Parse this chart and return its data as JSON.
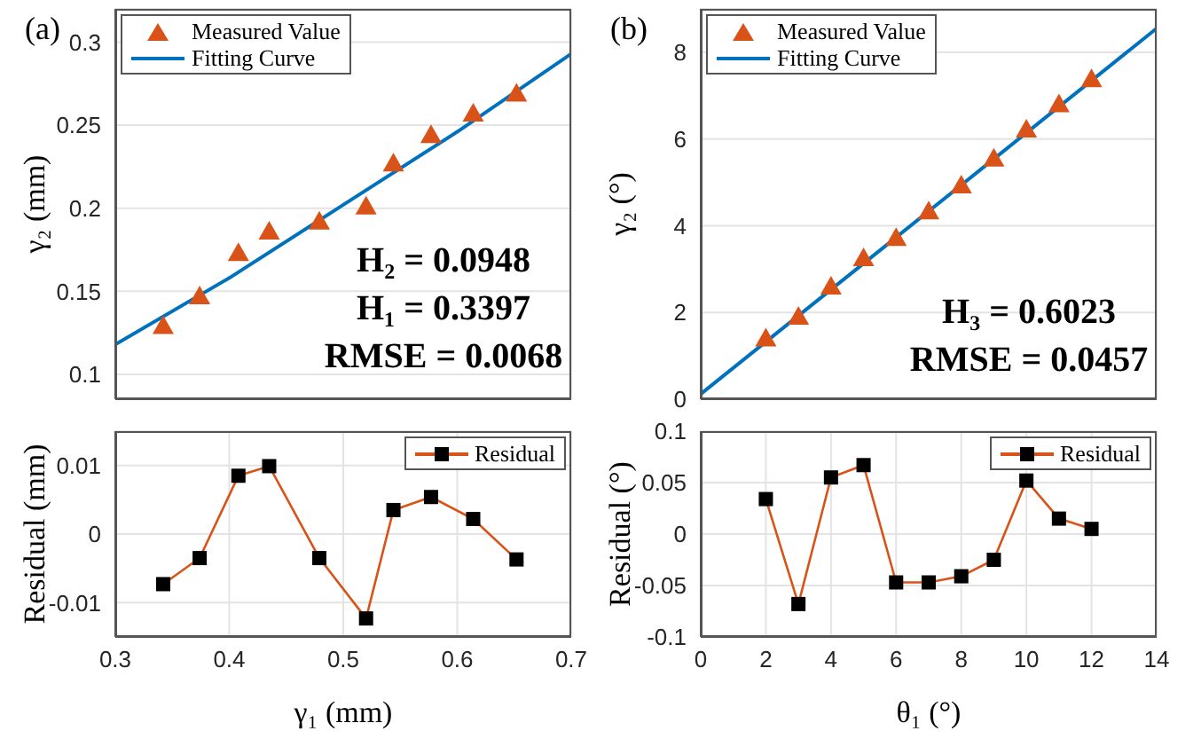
{
  "chart_data": [
    {
      "type": "scatter",
      "xlim": [
        0.3,
        0.7
      ],
      "xticks": [
        0.3,
        0.4,
        0.5,
        0.6,
        0.7
      ],
      "ylim": [
        0.085,
        0.32
      ],
      "yticks": [
        0.1,
        0.15,
        0.2,
        0.25,
        0.3
      ],
      "tick_labels": "y",
      "ylabel": "γ₂ (mm)",
      "legend": "top left",
      "grid": true,
      "annotations": [
        "(a)",
        "H₂ = 0.0948",
        "H₁ = 0.3397",
        "RMSE = 0.0068"
      ],
      "series": [
        {
          "name": "Measured Value",
          "type": "scatter",
          "marker": "triangle",
          "color": "#d95319",
          "x": [
            0.342,
            0.374,
            0.408,
            0.435,
            0.479,
            0.52,
            0.544,
            0.577,
            0.614,
            0.652
          ],
          "values": [
            0.129,
            0.147,
            0.173,
            0.186,
            0.192,
            0.201,
            0.227,
            0.244,
            0.257,
            0.269
          ]
        },
        {
          "name": "Fitting Curve",
          "type": "line",
          "marker": "none",
          "color": "#0072bd",
          "x": [
            0.3,
            0.4,
            0.5,
            0.6,
            0.7
          ],
          "values": [
            0.118,
            0.158,
            0.202,
            0.246,
            0.293
          ]
        }
      ]
    },
    {
      "type": "line",
      "xlim": [
        0.3,
        0.7
      ],
      "xticks": [
        0.3,
        0.4,
        0.5,
        0.6,
        0.7
      ],
      "ylim": [
        -0.015,
        0.015
      ],
      "yticks": [
        -0.01,
        0,
        0.01
      ],
      "xlabel": "γ₁ (mm)",
      "ylabel": "Residual (mm)",
      "legend": "top right",
      "grid": true,
      "marker": "square",
      "series": [
        {
          "name": "Residual",
          "color": "#d95319",
          "x": [
            0.342,
            0.374,
            0.408,
            0.435,
            0.479,
            0.52,
            0.544,
            0.577,
            0.614,
            0.652
          ],
          "values": [
            -0.0073,
            -0.0035,
            0.0085,
            0.0099,
            -0.0035,
            -0.0123,
            0.0035,
            0.0054,
            0.0022,
            -0.0037
          ]
        }
      ]
    },
    {
      "type": "scatter",
      "xlim": [
        0,
        14
      ],
      "xticks": [
        0,
        2,
        4,
        6,
        8,
        10,
        12,
        14
      ],
      "ylim": [
        0,
        9
      ],
      "yticks": [
        0,
        2,
        4,
        6,
        8
      ],
      "tick_labels": "y",
      "ylabel": "γ₂ (°)",
      "legend": "top left",
      "grid": true,
      "annotations": [
        "(b)",
        "H₃ = 0.6023",
        "RMSE = 0.0457"
      ],
      "series": [
        {
          "name": "Measured Value",
          "type": "scatter",
          "marker": "triangle",
          "color": "#d95319",
          "x": [
            2,
            3,
            4,
            5,
            6,
            7,
            8,
            9,
            10,
            11,
            12
          ],
          "values": [
            1.4,
            1.9,
            2.6,
            3.25,
            3.72,
            4.33,
            4.93,
            5.55,
            6.22,
            6.8,
            7.38
          ]
        },
        {
          "name": "Fitting Curve",
          "type": "line",
          "marker": "none",
          "color": "#0072bd",
          "x": [
            0,
            14
          ],
          "values": [
            0.12,
            8.55
          ]
        }
      ]
    },
    {
      "type": "line",
      "xlim": [
        0,
        14
      ],
      "xticks": [
        0,
        2,
        4,
        6,
        8,
        10,
        12,
        14
      ],
      "ylim": [
        -0.1,
        0.1
      ],
      "yticks": [
        -0.1,
        -0.05,
        0,
        0.05,
        0.1
      ],
      "xlabel": "θ₁ (°)",
      "ylabel": "Residual (°)",
      "legend": "top right",
      "grid": true,
      "marker": "square",
      "series": [
        {
          "name": "Residual",
          "color": "#d95319",
          "x": [
            2,
            3,
            4,
            5,
            6,
            7,
            8,
            9,
            10,
            11,
            12
          ],
          "values": [
            0.034,
            -0.068,
            0.055,
            0.067,
            -0.047,
            -0.047,
            -0.041,
            -0.025,
            0.052,
            0.015,
            0.005
          ]
        }
      ]
    }
  ]
}
